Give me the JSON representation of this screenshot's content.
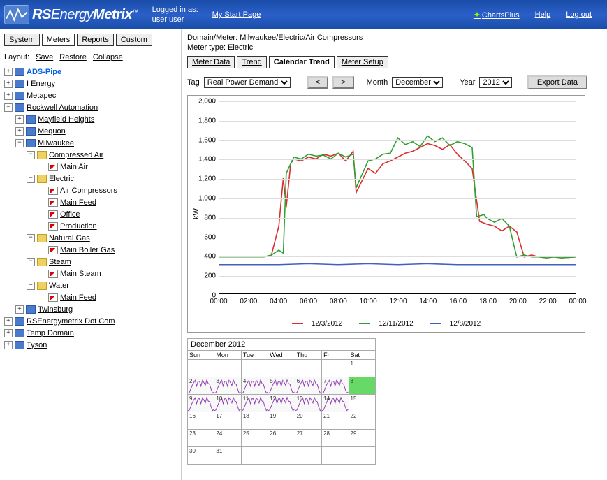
{
  "header": {
    "logo_rs": "RS",
    "logo_energy": "Energy",
    "logo_metrix": "Metrix",
    "logo_tm": "™",
    "logged_in_label": "Logged in as:",
    "logged_in_user": "user user",
    "start_page": "My Start Page",
    "chartsplus": "ChartsPlus",
    "help": "Help",
    "logout": "Log out"
  },
  "top_tabs": {
    "system": "System",
    "meters": "Meters",
    "reports": "Reports",
    "custom": "Custom"
  },
  "layout": {
    "label": "Layout:",
    "save": "Save",
    "restore": "Restore",
    "collapse": "Collapse"
  },
  "tree": {
    "ads_pipe": "ADS-Pipe",
    "i_energy": "I Energy",
    "metapec": "Metapec",
    "rockwell": "Rockwell Automation",
    "mayfield": "Mayfield Heights",
    "mequon": "Mequon",
    "milwaukee": "Milwaukee",
    "compressed_air": "Compressed Air",
    "main_air": "Main Air",
    "electric": "Electric",
    "air_compressors": "Air Compressors",
    "main_feed": "Main Feed",
    "office": "Office",
    "production": "Production",
    "natural_gas": "Natural Gas",
    "main_boiler_gas": "Main Boiler Gas",
    "steam": "Steam",
    "main_steam": "Main Steam",
    "water": "Water",
    "main_feed_water": "Main Feed",
    "twinsburg": "Twinsburg",
    "rsenergy_dotcom": "RSEnergymetrix Dot Com",
    "temp_domain": "Temp Domain",
    "tyson": "Tyson"
  },
  "content": {
    "domain_meter_label": "Domain/Meter:",
    "domain_meter": "Milwaukee/Electric/Air Compressors",
    "meter_type_label": "Meter type:",
    "meter_type": "Electric"
  },
  "sub_tabs": {
    "meter_data": "Meter Data",
    "trend": "Trend",
    "calendar_trend": "Calendar Trend",
    "meter_setup": "Meter Setup"
  },
  "controls": {
    "tag_label": "Tag",
    "tag_value": "Real Power Demand",
    "prev": "<",
    "next": ">",
    "month_label": "Month",
    "month_value": "December",
    "year_label": "Year",
    "year_value": "2012",
    "export": "Export Data"
  },
  "chart": {
    "ylabel": "kW",
    "ylim": [
      0,
      2000
    ],
    "ytick_step": 200,
    "yticks": [
      0,
      200,
      400,
      600,
      800,
      1000,
      1200,
      1400,
      1600,
      1800,
      2000
    ],
    "xticks": [
      "00:00",
      "02:00",
      "04:00",
      "06:00",
      "08:00",
      "10:00",
      "12:00",
      "14:00",
      "16:00",
      "18:00",
      "20:00",
      "22:00",
      "00:00"
    ],
    "grid_color": "#dddddd",
    "background_color": "#ffffff",
    "series": [
      {
        "label": "12/3/2012",
        "color": "#d83030",
        "x": [
          0,
          1,
          2,
          3,
          3.5,
          4,
          4.3,
          4.5,
          4.8,
          5,
          5.5,
          6,
          6.5,
          7,
          7.5,
          8,
          8.5,
          9,
          9.2,
          10,
          10.5,
          11,
          11.5,
          12,
          12.5,
          13,
          13.5,
          14,
          14.5,
          15,
          15.5,
          16,
          16.5,
          17,
          17.5,
          18,
          18.5,
          19,
          19.5,
          20,
          20.5,
          21,
          21.5,
          22,
          22.5,
          23,
          24
        ],
        "y": [
          380,
          380,
          380,
          380,
          400,
          700,
          1200,
          900,
          1350,
          1400,
          1380,
          1420,
          1400,
          1450,
          1430,
          1460,
          1380,
          1480,
          1050,
          1300,
          1250,
          1350,
          1380,
          1420,
          1460,
          1480,
          1520,
          1560,
          1540,
          1500,
          1550,
          1450,
          1380,
          1300,
          750,
          720,
          700,
          650,
          700,
          640,
          380,
          400,
          380,
          370,
          380,
          370,
          380
        ]
      },
      {
        "label": "12/11/2012",
        "color": "#30a030",
        "x": [
          0,
          1,
          2,
          3,
          3.5,
          4,
          4.3,
          4.5,
          5,
          5.5,
          6,
          6.5,
          7,
          7.5,
          8,
          8.5,
          9,
          9.2,
          10,
          10.5,
          11,
          11.5,
          12,
          12.5,
          13,
          13.5,
          14,
          14.5,
          15,
          15.5,
          16,
          16.5,
          17,
          17.3,
          17.8,
          18,
          18.5,
          19,
          19.5,
          20,
          20.5,
          21,
          21.5,
          22,
          22.5,
          23,
          24
        ],
        "y": [
          380,
          380,
          380,
          380,
          400,
          450,
          420,
          1250,
          1420,
          1400,
          1450,
          1430,
          1440,
          1400,
          1460,
          1420,
          1450,
          1100,
          1380,
          1400,
          1450,
          1460,
          1620,
          1550,
          1580,
          1530,
          1640,
          1580,
          1620,
          1540,
          1580,
          1560,
          1520,
          800,
          820,
          780,
          740,
          780,
          700,
          380,
          400,
          380,
          380,
          370,
          380,
          370,
          380
        ]
      },
      {
        "label": "12/8/2012",
        "color": "#4060c0",
        "x": [
          0,
          2,
          4,
          6,
          8,
          10,
          12,
          14,
          16,
          18,
          20,
          22,
          24
        ],
        "y": [
          300,
          300,
          300,
          310,
          300,
          310,
          300,
          310,
          300,
          300,
          300,
          300,
          300
        ]
      }
    ]
  },
  "calendar": {
    "title": "December 2012",
    "days": [
      "Sun",
      "Mon",
      "Tue",
      "Wed",
      "Thu",
      "Fri",
      "Sat"
    ],
    "spark_color": "#9040b0",
    "cells": [
      [
        "",
        "",
        "",
        "",
        "",
        "",
        "1"
      ],
      [
        "2",
        "3",
        "4",
        "5",
        "6",
        "7",
        "8"
      ],
      [
        "9",
        "10",
        "11",
        "12",
        "13",
        "14",
        "15"
      ],
      [
        "16",
        "17",
        "18",
        "19",
        "20",
        "21",
        "22"
      ],
      [
        "23",
        "24",
        "25",
        "26",
        "27",
        "28",
        "29"
      ],
      [
        "30",
        "31",
        "",
        "",
        "",
        "",
        ""
      ]
    ],
    "green_days": [
      "3",
      "8",
      "11"
    ],
    "data_days": [
      "2",
      "3",
      "4",
      "5",
      "6",
      "7",
      "9",
      "10",
      "11",
      "12",
      "13",
      "14"
    ]
  }
}
